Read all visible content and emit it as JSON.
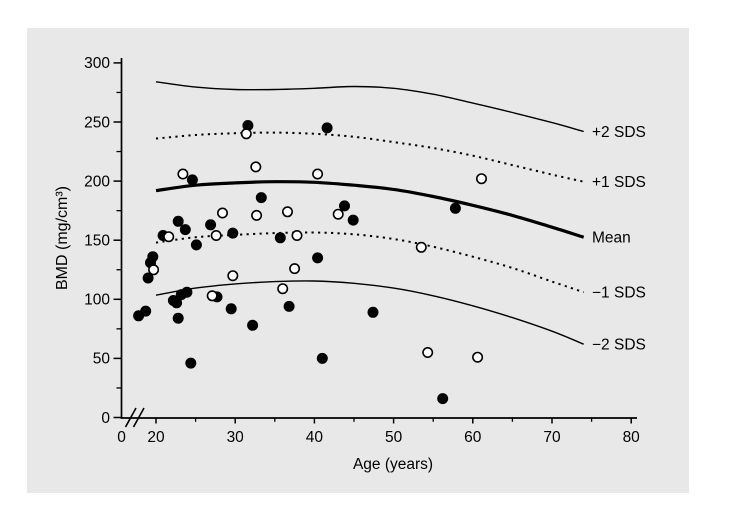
{
  "figure": {
    "background_color": "#ffffff",
    "panel_color": "#e8e8e8",
    "ink_color": "#000000"
  },
  "chart_data": {
    "type": "scatter",
    "title": "",
    "xlabel": "Age (years)",
    "ylabel": "BMD (mg/cm³)",
    "xlim": [
      0,
      80
    ],
    "ylim": [
      0,
      300
    ],
    "axis_break_on_x": true,
    "x_origin_tick_label": "0",
    "x_ticks_major": [
      20,
      30,
      40,
      50,
      60,
      70,
      80
    ],
    "x_ticks_minor": [
      25,
      35,
      45,
      55,
      65,
      75
    ],
    "y_ticks_major": [
      0,
      50,
      100,
      150,
      200,
      250,
      300
    ],
    "y_ticks_minor": [
      25,
      75,
      125,
      175,
      225,
      275
    ],
    "grid": false,
    "legend_position": "right-of-curves",
    "series": [
      {
        "name": "filled-circles",
        "marker": "filled-circle",
        "points": [
          [
            17.8,
            86
          ],
          [
            18.7,
            90
          ],
          [
            19.0,
            118
          ],
          [
            19.3,
            131
          ],
          [
            19.6,
            136
          ],
          [
            20.9,
            154
          ],
          [
            22.8,
            166
          ],
          [
            23.7,
            159
          ],
          [
            25.1,
            146
          ],
          [
            26.9,
            163
          ],
          [
            29.7,
            156
          ],
          [
            24.6,
            201
          ],
          [
            22.2,
            99
          ],
          [
            22.6,
            97
          ],
          [
            23.2,
            104
          ],
          [
            23.9,
            106
          ],
          [
            22.8,
            84
          ],
          [
            27.7,
            102
          ],
          [
            29.5,
            92
          ],
          [
            24.4,
            46
          ],
          [
            31.6,
            247
          ],
          [
            41.6,
            245
          ],
          [
            33.3,
            186
          ],
          [
            43.8,
            179
          ],
          [
            44.9,
            167
          ],
          [
            35.7,
            152
          ],
          [
            40.4,
            135
          ],
          [
            36.8,
            94
          ],
          [
            32.2,
            78
          ],
          [
            47.4,
            89
          ],
          [
            41.0,
            50
          ],
          [
            57.8,
            177
          ],
          [
            56.2,
            16
          ]
        ]
      },
      {
        "name": "open-circles",
        "marker": "open-circle",
        "points": [
          [
            21.6,
            153
          ],
          [
            19.7,
            125
          ],
          [
            23.4,
            206
          ],
          [
            28.4,
            173
          ],
          [
            27.6,
            154
          ],
          [
            29.7,
            120
          ],
          [
            27.1,
            103
          ],
          [
            32.6,
            212
          ],
          [
            40.4,
            206
          ],
          [
            31.4,
            240
          ],
          [
            32.7,
            171
          ],
          [
            36.6,
            174
          ],
          [
            43.0,
            172
          ],
          [
            37.8,
            154
          ],
          [
            37.5,
            126
          ],
          [
            36.0,
            109
          ],
          [
            61.1,
            202
          ],
          [
            53.5,
            144
          ],
          [
            54.3,
            55
          ],
          [
            60.6,
            51
          ]
        ]
      }
    ],
    "curves": [
      {
        "label": "+2 SDS",
        "style": "solid-thin",
        "points": [
          [
            20,
            284
          ],
          [
            25,
            279.5
          ],
          [
            30,
            277.5
          ],
          [
            35,
            277.5
          ],
          [
            40,
            278.5
          ],
          [
            45,
            280
          ],
          [
            50,
            278.5
          ],
          [
            55,
            273.5
          ],
          [
            60,
            266
          ],
          [
            65,
            258
          ],
          [
            70,
            249.5
          ],
          [
            74,
            242
          ]
        ]
      },
      {
        "label": "+1 SDS",
        "style": "dotted",
        "points": [
          [
            20,
            236
          ],
          [
            25,
            239
          ],
          [
            30,
            240.5
          ],
          [
            35,
            241
          ],
          [
            40,
            240
          ],
          [
            45,
            237.5
          ],
          [
            50,
            233
          ],
          [
            55,
            228
          ],
          [
            60,
            221.5
          ],
          [
            65,
            213.5
          ],
          [
            70,
            205.5
          ],
          [
            74,
            199.5
          ]
        ]
      },
      {
        "label": "Mean",
        "style": "solid-thick",
        "points": [
          [
            20,
            192
          ],
          [
            25,
            196.5
          ],
          [
            30,
            198.5
          ],
          [
            35,
            199.5
          ],
          [
            40,
            199
          ],
          [
            45,
            196.5
          ],
          [
            50,
            193
          ],
          [
            55,
            187
          ],
          [
            60,
            179.5
          ],
          [
            65,
            171
          ],
          [
            70,
            161
          ],
          [
            74,
            152.5
          ]
        ]
      },
      {
        "label": "−1 SDS",
        "style": "dotted",
        "points": [
          [
            20,
            148
          ],
          [
            25,
            152.5
          ],
          [
            30,
            154.5
          ],
          [
            35,
            156
          ],
          [
            40,
            156.5
          ],
          [
            45,
            155
          ],
          [
            50,
            151
          ],
          [
            55,
            144.5
          ],
          [
            60,
            136
          ],
          [
            65,
            126.5
          ],
          [
            70,
            115
          ],
          [
            74,
            106
          ]
        ]
      },
      {
        "label": "−2 SDS",
        "style": "solid-thin",
        "points": [
          [
            20,
            103.5
          ],
          [
            25,
            109.5
          ],
          [
            30,
            113
          ],
          [
            35,
            115
          ],
          [
            40,
            115.5
          ],
          [
            45,
            113.5
          ],
          [
            50,
            109.5
          ],
          [
            55,
            103
          ],
          [
            60,
            94.5
          ],
          [
            65,
            84.5
          ],
          [
            70,
            73
          ],
          [
            74,
            62
          ]
        ]
      }
    ]
  }
}
